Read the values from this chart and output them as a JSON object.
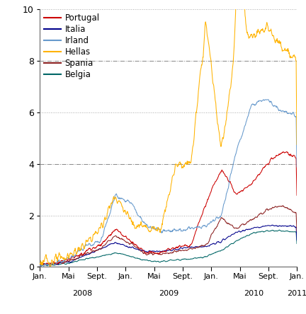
{
  "colors": {
    "Portugal": "#cc0000",
    "Italia": "#00008B",
    "Irland": "#6699cc",
    "Hellas": "#FFB300",
    "Spania": "#8B2020",
    "Belgia": "#006666"
  },
  "legend_labels": [
    "Portugal",
    "Italia",
    "Irland",
    "Hellas",
    "Spania",
    "Belgia"
  ],
  "ylim": [
    0,
    10
  ],
  "yticks": [
    0,
    2,
    4,
    6,
    8,
    10
  ],
  "x_tick_labels": [
    "Jan.",
    "Mai",
    "Sept.",
    "Jan.",
    "Mai",
    "Sept.",
    "Jan.",
    "Mai",
    "Sept.",
    "Jan."
  ],
  "x_year_labels": [
    "2008",
    "2009",
    "2010",
    "2011"
  ],
  "grid_colors": [
    "#aaaaaa",
    "#999999",
    "#aaaaaa",
    "#999999",
    "#aaaaaa",
    "#aaaaaa"
  ],
  "grid_styles": [
    ":",
    "-.",
    ":",
    "-.",
    ":",
    ":"
  ]
}
